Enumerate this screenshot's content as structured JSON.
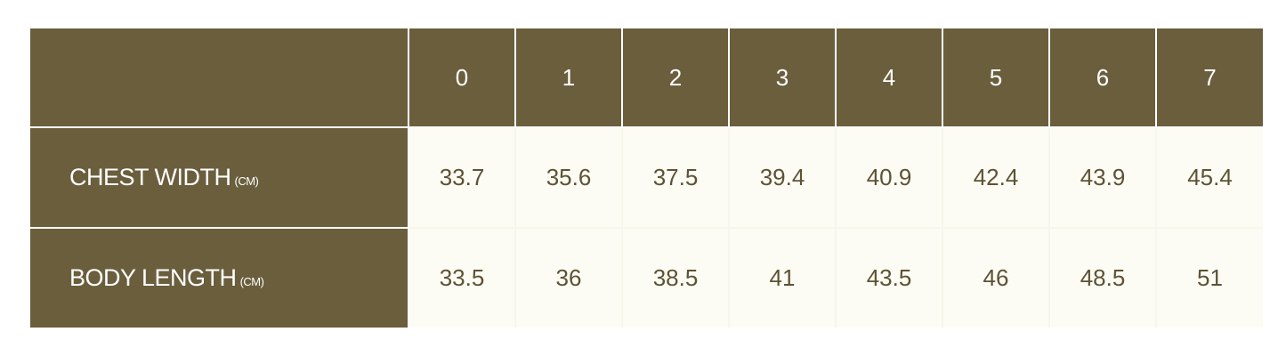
{
  "colors": {
    "header_bg": "#6b5e3d",
    "cell_bg": "#fcfcf4",
    "cell_text": "#5e5234",
    "header_text": "#ffffff"
  },
  "table": {
    "corner": "",
    "sizes": [
      "0",
      "1",
      "2",
      "3",
      "4",
      "5",
      "6",
      "7"
    ],
    "rows": [
      {
        "label": "CHEST WIDTH",
        "unit": "(CM)",
        "values": [
          "33.7",
          "35.6",
          "37.5",
          "39.4",
          "40.9",
          "42.4",
          "43.9",
          "45.4"
        ]
      },
      {
        "label": "BODY LENGTH",
        "unit": "(CM)",
        "values": [
          "33.5",
          "36",
          "38.5",
          "41",
          "43.5",
          "46",
          "48.5",
          "51"
        ]
      }
    ]
  }
}
